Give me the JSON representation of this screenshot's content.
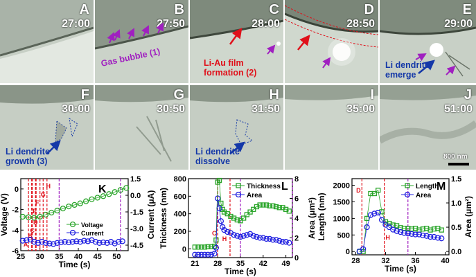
{
  "panels": [
    {
      "label": "A",
      "time": "27:00"
    },
    {
      "label": "B",
      "time": "27:50"
    },
    {
      "label": "C",
      "time": "28:00"
    },
    {
      "label": "D",
      "time": "28:50"
    },
    {
      "label": "E",
      "time": "29:00"
    },
    {
      "label": "F",
      "time": "30:00"
    },
    {
      "label": "G",
      "time": "30:50"
    },
    {
      "label": "H",
      "time": "31:50"
    },
    {
      "label": "I",
      "time": "35:00"
    },
    {
      "label": "J",
      "time": "51:00"
    }
  ],
  "annotations": {
    "gas_bubble": "Gas bubble (1)",
    "li_au_line1": "Li-Au film",
    "li_au_line2": "formation (2)",
    "emerge_line1": "Li dendrite",
    "emerge_line2": "emerge",
    "growth_line1": "Li dendrite",
    "growth_line2": "growth (3)",
    "dissolve_line1": "Li dendrite",
    "dissolve_line2": "dissolve"
  },
  "scale_bar": "800 nm",
  "colors": {
    "voltage": "#2aa52a",
    "current": "#2020e0",
    "marker_red": "#e0101a",
    "marker_purple": "#a020c0",
    "annotation_purple": "#a020c0",
    "annotation_blue": "#1438a8"
  },
  "chart_data": [
    {
      "type": "scatter",
      "panel": "K",
      "xlabel": "Time (s)",
      "ylabel_left": "Voltage (V)",
      "ylabel_right": "Current (μA)",
      "xlim": [
        25,
        53
      ],
      "ylim_left": [
        -6,
        1
      ],
      "ylim_right": [
        -5,
        1.5
      ],
      "xticks": [
        "25",
        "30",
        "35",
        "40",
        "45",
        "50"
      ],
      "yticks_left": [
        "-6",
        "-4",
        "-2",
        "0"
      ],
      "yticks_right": [
        "-4.5",
        "-3.0",
        "-1.5",
        "0.0",
        "1.5"
      ],
      "marker_labels": [
        "A",
        "B",
        "C",
        "D",
        "E",
        "F",
        "G",
        "H",
        "I",
        "J"
      ],
      "marker_times": [
        27.0,
        27.83,
        28.0,
        28.83,
        29.0,
        30.0,
        30.83,
        31.83,
        35.0,
        51.0
      ],
      "series": [
        {
          "name": "Voltage",
          "axis": "left",
          "x": [
            25.5,
            27,
            28.5,
            30,
            31.5,
            33,
            34.5,
            36,
            37.5,
            39,
            40.5,
            42,
            43.5,
            45,
            46.5,
            48,
            49.5,
            51,
            52.5
          ],
          "y": [
            -2.7,
            -2.75,
            -2.8,
            -2.7,
            -2.5,
            -2.3,
            -2.1,
            -1.9,
            -1.7,
            -1.55,
            -1.4,
            -1.2,
            -1.0,
            -0.85,
            -0.7,
            -0.5,
            -0.3,
            -0.1,
            0.1
          ]
        },
        {
          "name": "Current",
          "axis": "right",
          "x": [
            25.5,
            26.5,
            27.5,
            28.5,
            29.5,
            30.5,
            31.5,
            32.5,
            33.5,
            34.5,
            35.5,
            36.5,
            37.5,
            38.5,
            39.5,
            40.5,
            41.5,
            42.5,
            43.5,
            44.5,
            45.5,
            46.5,
            47.5,
            48.5,
            49.5,
            50.5,
            51.5
          ],
          "y": [
            -4.1,
            -4.05,
            -4.0,
            -4.2,
            -4.3,
            -4.2,
            -4.3,
            -4.35,
            -4.4,
            -4.3,
            -4.25,
            -4.2,
            -4.25,
            -4.2,
            -4.15,
            -4.2,
            -4.1,
            -4.15,
            -4.05,
            -4.2,
            -4.3,
            -4.25,
            -4.3,
            -4.2,
            -4.35,
            -4.2,
            -4.15
          ]
        }
      ]
    },
    {
      "type": "scatter",
      "panel": "L",
      "xlabel": "Time (s)",
      "ylabel_left": "Thickness (nm)",
      "ylabel_right": "Area (μm²)",
      "xlim": [
        19,
        51
      ],
      "ylim_left": [
        -100,
        800
      ],
      "ylim_right": [
        0,
        8
      ],
      "xticks": [
        "21",
        "28",
        "35",
        "42",
        "49"
      ],
      "yticks_left": [
        "0",
        "200",
        "400",
        "600",
        "800"
      ],
      "yticks_right": [
        "0",
        "2",
        "4",
        "6",
        "8"
      ],
      "marker_labels": [
        "C",
        "H",
        "I",
        "J"
      ],
      "marker_times": [
        28.0,
        31.8,
        35.0,
        51.0
      ],
      "series": [
        {
          "name": "Thickness",
          "axis": "left",
          "x": [
            21,
            22,
            23,
            24,
            25,
            26,
            27,
            27.5,
            28,
            28.5,
            29,
            29.5,
            30,
            31,
            32,
            33,
            34,
            35,
            36,
            37,
            38,
            39,
            40,
            41,
            42,
            43,
            44,
            45,
            46,
            47,
            48,
            49,
            50
          ],
          "y": [
            20,
            20,
            20,
            20,
            25,
            25,
            30,
            100,
            760,
            780,
            520,
            450,
            420,
            400,
            370,
            350,
            330,
            320,
            350,
            390,
            420,
            450,
            480,
            500,
            500,
            500,
            490,
            490,
            480,
            470,
            470,
            450,
            430
          ]
        },
        {
          "name": "Area",
          "axis": "right",
          "x": [
            21,
            22,
            23,
            24,
            25,
            26,
            27,
            27.5,
            28,
            28.5,
            29,
            29.5,
            30,
            31,
            32,
            33,
            34,
            35,
            36,
            37,
            38,
            39,
            40,
            41,
            42,
            43,
            44,
            45,
            46,
            47,
            48,
            49,
            50
          ],
          "y": [
            0.3,
            0.3,
            0.3,
            0.3,
            0.3,
            0.3,
            0.4,
            1.0,
            6.0,
            5.0,
            3.7,
            3.1,
            2.8,
            2.6,
            2.5,
            2.3,
            2.2,
            2.1,
            2.2,
            2.3,
            2.4,
            2.2,
            2.1,
            2.0,
            2.0,
            1.9,
            1.9,
            1.8,
            1.8,
            1.7,
            1.6,
            1.6,
            1.5
          ]
        }
      ]
    },
    {
      "type": "scatter",
      "panel": "M",
      "xlabel": "Time (s)",
      "ylabel_left": "Length (nm)",
      "ylabel_right": "Area (μm²)",
      "xlim": [
        27.5,
        40.5
      ],
      "ylim_left": [
        -100,
        2200
      ],
      "ylim_right": [
        -0.07,
        1.5
      ],
      "xticks": [
        "28",
        "32",
        "36",
        "40"
      ],
      "yticks_left": [
        "0",
        "500",
        "1000",
        "1500",
        "2000"
      ],
      "yticks_right": [
        "0.0",
        "0.5",
        "1.0",
        "1.5"
      ],
      "marker_labels": [
        "D",
        "H",
        "I"
      ],
      "marker_times": [
        28.83,
        31.83,
        35.0
      ],
      "series": [
        {
          "name": "Length",
          "axis": "left",
          "x": [
            28.5,
            29.0,
            29.5,
            30.0,
            30.5,
            31.0,
            31.5,
            32.0,
            32.5,
            33.0,
            33.5,
            34.0,
            34.5,
            35.0,
            35.5,
            36.0,
            36.5,
            37.0,
            37.5,
            38.0,
            38.5,
            39.0,
            39.5
          ],
          "y": [
            0,
            0,
            1000,
            1750,
            1750,
            1850,
            1200,
            900,
            850,
            800,
            780,
            720,
            700,
            700,
            680,
            700,
            650,
            680,
            700,
            650,
            680,
            700,
            650
          ]
        },
        {
          "name": "Area",
          "axis": "right",
          "x": [
            28.5,
            29.0,
            29.5,
            30.0,
            30.5,
            31.0,
            31.5,
            32.0,
            32.5,
            33.0,
            33.5,
            34.0,
            34.5,
            35.0,
            35.5,
            36.0,
            36.5,
            37.0,
            37.5,
            38.0,
            38.5,
            39.0,
            39.5
          ],
          "y": [
            0.0,
            0.05,
            0.5,
            0.75,
            0.78,
            0.8,
            0.65,
            0.55,
            0.5,
            0.45,
            0.42,
            0.4,
            0.38,
            0.37,
            0.36,
            0.35,
            0.35,
            0.33,
            0.32,
            0.3,
            0.3,
            0.28,
            0.27
          ]
        }
      ]
    }
  ]
}
